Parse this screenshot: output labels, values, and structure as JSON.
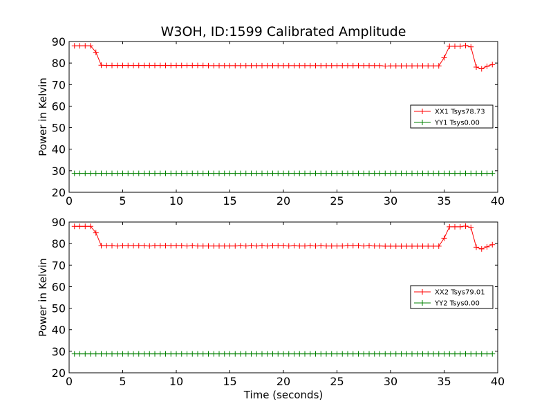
{
  "figure": {
    "title": "W3OH, ID:1599 Calibrated Amplitude"
  },
  "chart_data": [
    {
      "type": "line",
      "title": "W3OH, ID:1599 Calibrated Amplitude",
      "xlabel": "",
      "ylabel": "Power in Kelvin",
      "xlim": [
        0,
        40
      ],
      "ylim": [
        20,
        90
      ],
      "xticks": [
        0,
        5,
        10,
        15,
        20,
        25,
        30,
        35,
        40
      ],
      "yticks": [
        20,
        30,
        40,
        50,
        60,
        70,
        80,
        90
      ],
      "grid": false,
      "legend_position": "center-right",
      "x": [
        0.5,
        1.0,
        1.5,
        2.0,
        2.5,
        3.0,
        3.5,
        4.0,
        4.5,
        5.0,
        5.5,
        6.0,
        6.5,
        7.0,
        7.5,
        8.0,
        8.5,
        9.0,
        9.5,
        10.0,
        10.5,
        11.0,
        11.5,
        12.0,
        12.5,
        13.0,
        13.5,
        14.0,
        14.5,
        15.0,
        15.5,
        16.0,
        16.5,
        17.0,
        17.5,
        18.0,
        18.5,
        19.0,
        19.5,
        20.0,
        20.5,
        21.0,
        21.5,
        22.0,
        22.5,
        23.0,
        23.5,
        24.0,
        24.5,
        25.0,
        25.5,
        26.0,
        26.5,
        27.0,
        27.5,
        28.0,
        28.5,
        29.0,
        29.5,
        30.0,
        30.5,
        31.0,
        31.5,
        32.0,
        32.5,
        33.0,
        33.5,
        34.0,
        34.5,
        35.0,
        35.5,
        36.0,
        36.5,
        37.0,
        37.5,
        38.0,
        38.5,
        39.0,
        39.5
      ],
      "series": [
        {
          "name": "XX1 Tsys78.73",
          "color": "#ff0000",
          "values": [
            88,
            88,
            88,
            88,
            85,
            79,
            78.9,
            78.9,
            78.9,
            78.9,
            78.9,
            78.9,
            78.9,
            78.9,
            78.9,
            78.9,
            78.9,
            78.9,
            78.9,
            78.9,
            78.9,
            78.9,
            78.9,
            78.9,
            78.9,
            78.8,
            78.8,
            78.8,
            78.8,
            78.8,
            78.8,
            78.8,
            78.8,
            78.8,
            78.8,
            78.8,
            78.8,
            78.8,
            78.8,
            78.8,
            78.8,
            78.8,
            78.8,
            78.8,
            78.8,
            78.8,
            78.8,
            78.8,
            78.8,
            78.8,
            78.8,
            78.8,
            78.8,
            78.8,
            78.8,
            78.8,
            78.8,
            78.8,
            78.6,
            78.7,
            78.7,
            78.7,
            78.7,
            78.7,
            78.7,
            78.7,
            78.7,
            78.7,
            78.7,
            82.5,
            87.8,
            87.8,
            87.8,
            88.1,
            87.5,
            78.1,
            77.3,
            78.5,
            79.3
          ]
        },
        {
          "name": "YY1 Tsys0.00",
          "color": "#008000",
          "values": [
            28.8,
            28.8,
            28.8,
            28.8,
            28.8,
            28.8,
            28.8,
            28.8,
            28.8,
            28.8,
            28.8,
            28.8,
            28.8,
            28.8,
            28.8,
            28.8,
            28.8,
            28.8,
            28.8,
            28.8,
            28.8,
            28.8,
            28.8,
            28.8,
            28.8,
            28.8,
            28.8,
            28.8,
            28.8,
            28.8,
            28.8,
            28.8,
            28.8,
            28.8,
            28.8,
            28.8,
            28.8,
            28.8,
            28.8,
            28.8,
            28.8,
            28.8,
            28.8,
            28.8,
            28.8,
            28.8,
            28.8,
            28.8,
            28.8,
            28.8,
            28.8,
            28.8,
            28.8,
            28.8,
            28.8,
            28.8,
            28.8,
            28.8,
            28.8,
            28.8,
            28.8,
            28.8,
            28.8,
            28.8,
            28.8,
            28.8,
            28.8,
            28.8,
            28.8,
            28.8,
            28.8,
            28.8,
            28.8,
            28.8,
            28.8,
            28.8,
            28.8,
            28.8,
            28.8
          ]
        }
      ]
    },
    {
      "type": "line",
      "title": "",
      "xlabel": "Time (seconds)",
      "ylabel": "Power in Kelvin",
      "xlim": [
        0,
        40
      ],
      "ylim": [
        20,
        90
      ],
      "xticks": [
        0,
        5,
        10,
        15,
        20,
        25,
        30,
        35,
        40
      ],
      "yticks": [
        20,
        30,
        40,
        50,
        60,
        70,
        80,
        90
      ],
      "grid": false,
      "legend_position": "center-right",
      "x": [
        0.5,
        1.0,
        1.5,
        2.0,
        2.5,
        3.0,
        3.5,
        4.0,
        4.5,
        5.0,
        5.5,
        6.0,
        6.5,
        7.0,
        7.5,
        8.0,
        8.5,
        9.0,
        9.5,
        10.0,
        10.5,
        11.0,
        11.5,
        12.0,
        12.5,
        13.0,
        13.5,
        14.0,
        14.5,
        15.0,
        15.5,
        16.0,
        16.5,
        17.0,
        17.5,
        18.0,
        18.5,
        19.0,
        19.5,
        20.0,
        20.5,
        21.0,
        21.5,
        22.0,
        22.5,
        23.0,
        23.5,
        24.0,
        24.5,
        25.0,
        25.5,
        26.0,
        26.5,
        27.0,
        27.5,
        28.0,
        28.5,
        29.0,
        29.5,
        30.0,
        30.5,
        31.0,
        31.5,
        32.0,
        32.5,
        33.0,
        33.5,
        34.0,
        34.5,
        35.0,
        35.5,
        36.0,
        36.5,
        37.0,
        37.5,
        38.0,
        38.5,
        39.0,
        39.5
      ],
      "series": [
        {
          "name": "XX2 Tsys79.01",
          "color": "#ff0000",
          "values": [
            88,
            88,
            88,
            88,
            85,
            79,
            79,
            79,
            78.9,
            79,
            79,
            79,
            79,
            79,
            78.9,
            79,
            79,
            79,
            79,
            79,
            79,
            78.9,
            79,
            78.9,
            78.9,
            78.9,
            78.9,
            78.9,
            78.9,
            78.9,
            78.9,
            79,
            78.9,
            79,
            78.9,
            79,
            78.9,
            79,
            79,
            79,
            78.9,
            79,
            78.9,
            78.9,
            79,
            78.9,
            79,
            78.9,
            78.9,
            78.9,
            78.9,
            79,
            79,
            79,
            78.9,
            79,
            78.9,
            78.9,
            78.8,
            78.8,
            78.8,
            78.8,
            78.8,
            78.8,
            78.8,
            78.8,
            78.8,
            78.8,
            78.8,
            82.5,
            87.8,
            87.8,
            87.8,
            88.1,
            87.5,
            78.3,
            77.5,
            78.5,
            79.5
          ]
        },
        {
          "name": "YY2 Tsys0.00",
          "color": "#008000",
          "values": [
            28.8,
            28.8,
            28.8,
            28.8,
            28.8,
            28.8,
            28.8,
            28.8,
            28.8,
            28.8,
            28.8,
            28.8,
            28.8,
            28.8,
            28.8,
            28.8,
            28.8,
            28.8,
            28.8,
            28.8,
            28.8,
            28.8,
            28.8,
            28.8,
            28.8,
            28.8,
            28.8,
            28.8,
            28.8,
            28.8,
            28.8,
            28.8,
            28.8,
            28.8,
            28.8,
            28.8,
            28.8,
            28.8,
            28.8,
            28.8,
            28.8,
            28.8,
            28.8,
            28.8,
            28.8,
            28.8,
            28.8,
            28.8,
            28.8,
            28.8,
            28.8,
            28.8,
            28.8,
            28.8,
            28.8,
            28.8,
            28.8,
            28.8,
            28.8,
            28.8,
            28.8,
            28.8,
            28.8,
            28.8,
            28.8,
            28.8,
            28.8,
            28.8,
            28.8,
            28.8,
            28.8,
            28.8,
            28.8,
            28.8,
            28.8,
            28.8,
            28.8,
            28.8,
            28.8
          ]
        }
      ]
    }
  ]
}
